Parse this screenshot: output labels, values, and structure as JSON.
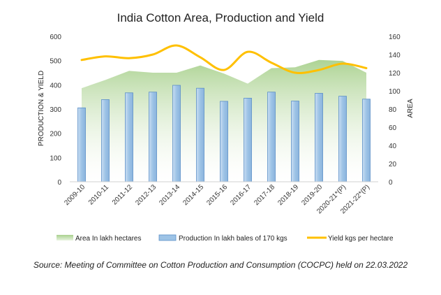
{
  "chart_data": {
    "type": "bar",
    "title": "India Cotton Area, Production and Yield",
    "ylabel_left": "PRODUCTION & YIELD",
    "ylabel_right": "AREA",
    "ylim_left": [
      0,
      600
    ],
    "ylim_right": [
      0,
      160
    ],
    "left_ticks": [
      0,
      100,
      200,
      300,
      400,
      500,
      600
    ],
    "right_ticks": [
      0,
      20,
      40,
      60,
      80,
      100,
      120,
      140,
      160
    ],
    "grid": false,
    "legend_position": "bottom",
    "categories": [
      "2009-10",
      "2010-11",
      "2011-12",
      "2012-13",
      "2013-14",
      "2014-15",
      "2015-16",
      "2016-17",
      "2017-18",
      "2018-19",
      "2019-20",
      "2020-21*(P)",
      "2021-22*(P)"
    ],
    "series": [
      {
        "name": "Area In lakh hectares",
        "kind": "area",
        "axis": "right",
        "color": "#a9d18e",
        "values": [
          103,
          112,
          122,
          120,
          120,
          128,
          119,
          108,
          125,
          126,
          134,
          133,
          120
        ]
      },
      {
        "name": "Production In lakh bales of 170 kgs",
        "kind": "bar",
        "axis": "left",
        "color": "#9dc3e6",
        "values": [
          305,
          339,
          367,
          370,
          398,
          386,
          332,
          345,
          370,
          333,
          365,
          353,
          341
        ]
      },
      {
        "name": "Yield kgs per hectare",
        "kind": "line",
        "axis": "right",
        "color": "#ffc000",
        "values": [
          134,
          138,
          136,
          140,
          150,
          137,
          123,
          143,
          131,
          120,
          123,
          130,
          125
        ]
      }
    ]
  },
  "source_note": "Source: Meeting of Committee on Cotton Production and Consumption (COCPC) held on 22.03.2022"
}
